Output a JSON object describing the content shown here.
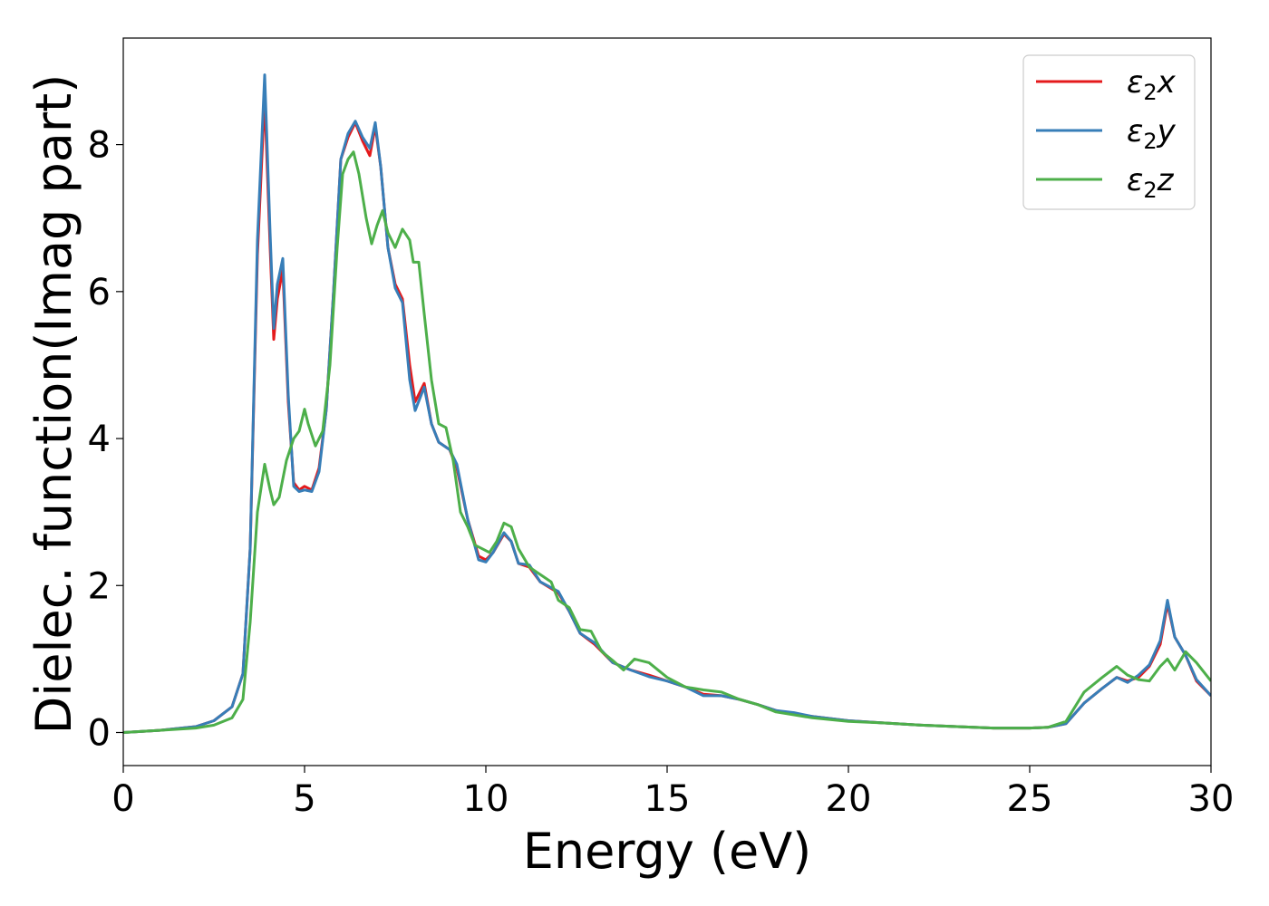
{
  "chart_data": {
    "type": "line",
    "xlabel": "Energy (eV)",
    "ylabel": "Dielec. function(Imag part)",
    "xlim": [
      0,
      30
    ],
    "ylim": [
      -0.45,
      9.45
    ],
    "x_ticks": [
      "0",
      "5",
      "10",
      "15",
      "20",
      "25",
      "30"
    ],
    "x_tick_values": [
      0,
      5,
      10,
      15,
      20,
      25,
      30
    ],
    "y_ticks": [
      "0",
      "2",
      "4",
      "6",
      "8"
    ],
    "y_tick_values": [
      0,
      2,
      4,
      6,
      8
    ],
    "grid": false,
    "legend_position": "top-right",
    "series": [
      {
        "name": "ε₂x",
        "legend_main": "ε",
        "legend_sub": "2",
        "legend_suffix": "x",
        "color": "#e41a1c",
        "points": [
          [
            0,
            0
          ],
          [
            1,
            0.03
          ],
          [
            2,
            0.08
          ],
          [
            2.5,
            0.16
          ],
          [
            3,
            0.35
          ],
          [
            3.3,
            0.8
          ],
          [
            3.5,
            2.5
          ],
          [
            3.7,
            6.5
          ],
          [
            3.9,
            8.65
          ],
          [
            4.05,
            6.6
          ],
          [
            4.15,
            5.35
          ],
          [
            4.25,
            5.9
          ],
          [
            4.4,
            6.3
          ],
          [
            4.55,
            4.5
          ],
          [
            4.7,
            3.4
          ],
          [
            4.85,
            3.3
          ],
          [
            5.0,
            3.35
          ],
          [
            5.2,
            3.3
          ],
          [
            5.4,
            3.6
          ],
          [
            5.6,
            4.4
          ],
          [
            5.8,
            6.0
          ],
          [
            6.0,
            7.8
          ],
          [
            6.2,
            8.1
          ],
          [
            6.4,
            8.3
          ],
          [
            6.6,
            8.05
          ],
          [
            6.8,
            7.85
          ],
          [
            6.95,
            8.25
          ],
          [
            7.1,
            7.7
          ],
          [
            7.3,
            6.6
          ],
          [
            7.5,
            6.1
          ],
          [
            7.7,
            5.9
          ],
          [
            7.9,
            5.0
          ],
          [
            8.05,
            4.5
          ],
          [
            8.3,
            4.75
          ],
          [
            8.5,
            4.2
          ],
          [
            8.7,
            3.95
          ],
          [
            9.0,
            3.85
          ],
          [
            9.2,
            3.6
          ],
          [
            9.5,
            2.9
          ],
          [
            9.8,
            2.4
          ],
          [
            10.0,
            2.35
          ],
          [
            10.2,
            2.45
          ],
          [
            10.5,
            2.7
          ],
          [
            10.7,
            2.6
          ],
          [
            10.9,
            2.3
          ],
          [
            11.2,
            2.25
          ],
          [
            11.5,
            2.05
          ],
          [
            12.0,
            1.9
          ],
          [
            12.3,
            1.65
          ],
          [
            12.6,
            1.35
          ],
          [
            13.0,
            1.2
          ],
          [
            13.5,
            0.95
          ],
          [
            14.0,
            0.85
          ],
          [
            14.5,
            0.78
          ],
          [
            15.0,
            0.7
          ],
          [
            15.5,
            0.62
          ],
          [
            16.0,
            0.52
          ],
          [
            16.5,
            0.5
          ],
          [
            17.0,
            0.45
          ],
          [
            17.5,
            0.38
          ],
          [
            18.0,
            0.3
          ],
          [
            18.5,
            0.25
          ],
          [
            19.0,
            0.22
          ],
          [
            20.0,
            0.16
          ],
          [
            21.0,
            0.13
          ],
          [
            22.0,
            0.1
          ],
          [
            23.0,
            0.08
          ],
          [
            24.0,
            0.06
          ],
          [
            25.0,
            0.06
          ],
          [
            25.5,
            0.07
          ],
          [
            26.0,
            0.12
          ],
          [
            26.5,
            0.4
          ],
          [
            27.0,
            0.6
          ],
          [
            27.4,
            0.75
          ],
          [
            27.7,
            0.7
          ],
          [
            28.0,
            0.75
          ],
          [
            28.3,
            0.9
          ],
          [
            28.6,
            1.2
          ],
          [
            28.8,
            1.75
          ],
          [
            29.0,
            1.3
          ],
          [
            29.3,
            1.05
          ],
          [
            29.6,
            0.7
          ],
          [
            30.0,
            0.5
          ]
        ]
      },
      {
        "name": "ε₂y",
        "legend_main": "ε",
        "legend_sub": "2",
        "legend_suffix": "y",
        "color": "#377eb8",
        "points": [
          [
            0,
            0
          ],
          [
            1,
            0.03
          ],
          [
            2,
            0.08
          ],
          [
            2.5,
            0.16
          ],
          [
            3,
            0.35
          ],
          [
            3.3,
            0.8
          ],
          [
            3.5,
            2.5
          ],
          [
            3.7,
            6.7
          ],
          [
            3.9,
            8.95
          ],
          [
            4.05,
            6.8
          ],
          [
            4.15,
            5.5
          ],
          [
            4.25,
            6.1
          ],
          [
            4.4,
            6.45
          ],
          [
            4.55,
            4.6
          ],
          [
            4.7,
            3.35
          ],
          [
            4.85,
            3.28
          ],
          [
            5.0,
            3.3
          ],
          [
            5.2,
            3.28
          ],
          [
            5.4,
            3.55
          ],
          [
            5.6,
            4.4
          ],
          [
            5.8,
            6.0
          ],
          [
            6.0,
            7.8
          ],
          [
            6.2,
            8.15
          ],
          [
            6.4,
            8.32
          ],
          [
            6.6,
            8.1
          ],
          [
            6.8,
            7.95
          ],
          [
            6.95,
            8.3
          ],
          [
            7.1,
            7.7
          ],
          [
            7.3,
            6.6
          ],
          [
            7.5,
            6.05
          ],
          [
            7.7,
            5.85
          ],
          [
            7.9,
            4.8
          ],
          [
            8.05,
            4.38
          ],
          [
            8.3,
            4.7
          ],
          [
            8.5,
            4.2
          ],
          [
            8.7,
            3.95
          ],
          [
            9.0,
            3.85
          ],
          [
            9.2,
            3.65
          ],
          [
            9.5,
            2.9
          ],
          [
            9.8,
            2.35
          ],
          [
            10.0,
            2.32
          ],
          [
            10.2,
            2.45
          ],
          [
            10.5,
            2.72
          ],
          [
            10.7,
            2.6
          ],
          [
            10.9,
            2.3
          ],
          [
            11.2,
            2.28
          ],
          [
            11.5,
            2.05
          ],
          [
            12.0,
            1.92
          ],
          [
            12.3,
            1.65
          ],
          [
            12.6,
            1.35
          ],
          [
            13.0,
            1.22
          ],
          [
            13.5,
            0.95
          ],
          [
            14.0,
            0.85
          ],
          [
            14.5,
            0.76
          ],
          [
            15.0,
            0.7
          ],
          [
            15.5,
            0.62
          ],
          [
            16.0,
            0.5
          ],
          [
            16.5,
            0.5
          ],
          [
            17.0,
            0.45
          ],
          [
            17.5,
            0.38
          ],
          [
            18.0,
            0.3
          ],
          [
            18.5,
            0.27
          ],
          [
            19.0,
            0.22
          ],
          [
            20.0,
            0.16
          ],
          [
            21.0,
            0.13
          ],
          [
            22.0,
            0.1
          ],
          [
            23.0,
            0.08
          ],
          [
            24.0,
            0.06
          ],
          [
            25.0,
            0.06
          ],
          [
            25.5,
            0.07
          ],
          [
            26.0,
            0.12
          ],
          [
            26.5,
            0.4
          ],
          [
            27.0,
            0.6
          ],
          [
            27.4,
            0.75
          ],
          [
            27.7,
            0.68
          ],
          [
            28.0,
            0.78
          ],
          [
            28.3,
            0.92
          ],
          [
            28.6,
            1.25
          ],
          [
            28.8,
            1.8
          ],
          [
            29.0,
            1.3
          ],
          [
            29.3,
            1.05
          ],
          [
            29.6,
            0.72
          ],
          [
            30.0,
            0.5
          ]
        ]
      },
      {
        "name": "ε₂z",
        "legend_main": "ε",
        "legend_sub": "2",
        "legend_suffix": "z",
        "color": "#4daf4a",
        "points": [
          [
            0,
            0
          ],
          [
            1,
            0.03
          ],
          [
            2,
            0.06
          ],
          [
            2.5,
            0.1
          ],
          [
            3,
            0.2
          ],
          [
            3.3,
            0.45
          ],
          [
            3.5,
            1.5
          ],
          [
            3.7,
            3.0
          ],
          [
            3.9,
            3.65
          ],
          [
            4.05,
            3.3
          ],
          [
            4.15,
            3.1
          ],
          [
            4.3,
            3.2
          ],
          [
            4.5,
            3.7
          ],
          [
            4.7,
            4.0
          ],
          [
            4.85,
            4.1
          ],
          [
            5.0,
            4.4
          ],
          [
            5.1,
            4.2
          ],
          [
            5.3,
            3.9
          ],
          [
            5.5,
            4.1
          ],
          [
            5.7,
            5.0
          ],
          [
            5.9,
            6.6
          ],
          [
            6.05,
            7.6
          ],
          [
            6.2,
            7.8
          ],
          [
            6.35,
            7.9
          ],
          [
            6.5,
            7.6
          ],
          [
            6.7,
            7.0
          ],
          [
            6.85,
            6.65
          ],
          [
            7.0,
            6.9
          ],
          [
            7.15,
            7.1
          ],
          [
            7.3,
            6.8
          ],
          [
            7.5,
            6.6
          ],
          [
            7.7,
            6.85
          ],
          [
            7.9,
            6.7
          ],
          [
            8.0,
            6.4
          ],
          [
            8.15,
            6.4
          ],
          [
            8.3,
            5.7
          ],
          [
            8.5,
            4.8
          ],
          [
            8.7,
            4.2
          ],
          [
            8.9,
            4.15
          ],
          [
            9.1,
            3.7
          ],
          [
            9.3,
            3.0
          ],
          [
            9.5,
            2.8
          ],
          [
            9.7,
            2.55
          ],
          [
            9.9,
            2.5
          ],
          [
            10.1,
            2.45
          ],
          [
            10.3,
            2.6
          ],
          [
            10.5,
            2.85
          ],
          [
            10.7,
            2.8
          ],
          [
            10.9,
            2.5
          ],
          [
            11.2,
            2.25
          ],
          [
            11.5,
            2.15
          ],
          [
            11.8,
            2.05
          ],
          [
            12.0,
            1.8
          ],
          [
            12.3,
            1.7
          ],
          [
            12.6,
            1.4
          ],
          [
            12.9,
            1.38
          ],
          [
            13.2,
            1.1
          ],
          [
            13.5,
            0.98
          ],
          [
            13.8,
            0.85
          ],
          [
            14.1,
            1.0
          ],
          [
            14.5,
            0.95
          ],
          [
            15.0,
            0.75
          ],
          [
            15.5,
            0.62
          ],
          [
            16.0,
            0.58
          ],
          [
            16.5,
            0.55
          ],
          [
            17.0,
            0.45
          ],
          [
            17.5,
            0.38
          ],
          [
            18.0,
            0.28
          ],
          [
            18.5,
            0.24
          ],
          [
            19.0,
            0.2
          ],
          [
            20.0,
            0.15
          ],
          [
            21.0,
            0.13
          ],
          [
            22.0,
            0.1
          ],
          [
            23.0,
            0.08
          ],
          [
            24.0,
            0.06
          ],
          [
            25.0,
            0.06
          ],
          [
            25.5,
            0.07
          ],
          [
            26.0,
            0.15
          ],
          [
            26.5,
            0.55
          ],
          [
            27.0,
            0.75
          ],
          [
            27.4,
            0.9
          ],
          [
            27.7,
            0.78
          ],
          [
            28.0,
            0.72
          ],
          [
            28.3,
            0.7
          ],
          [
            28.6,
            0.9
          ],
          [
            28.8,
            1.0
          ],
          [
            29.0,
            0.85
          ],
          [
            29.3,
            1.1
          ],
          [
            29.6,
            0.95
          ],
          [
            30.0,
            0.7
          ]
        ]
      }
    ]
  }
}
